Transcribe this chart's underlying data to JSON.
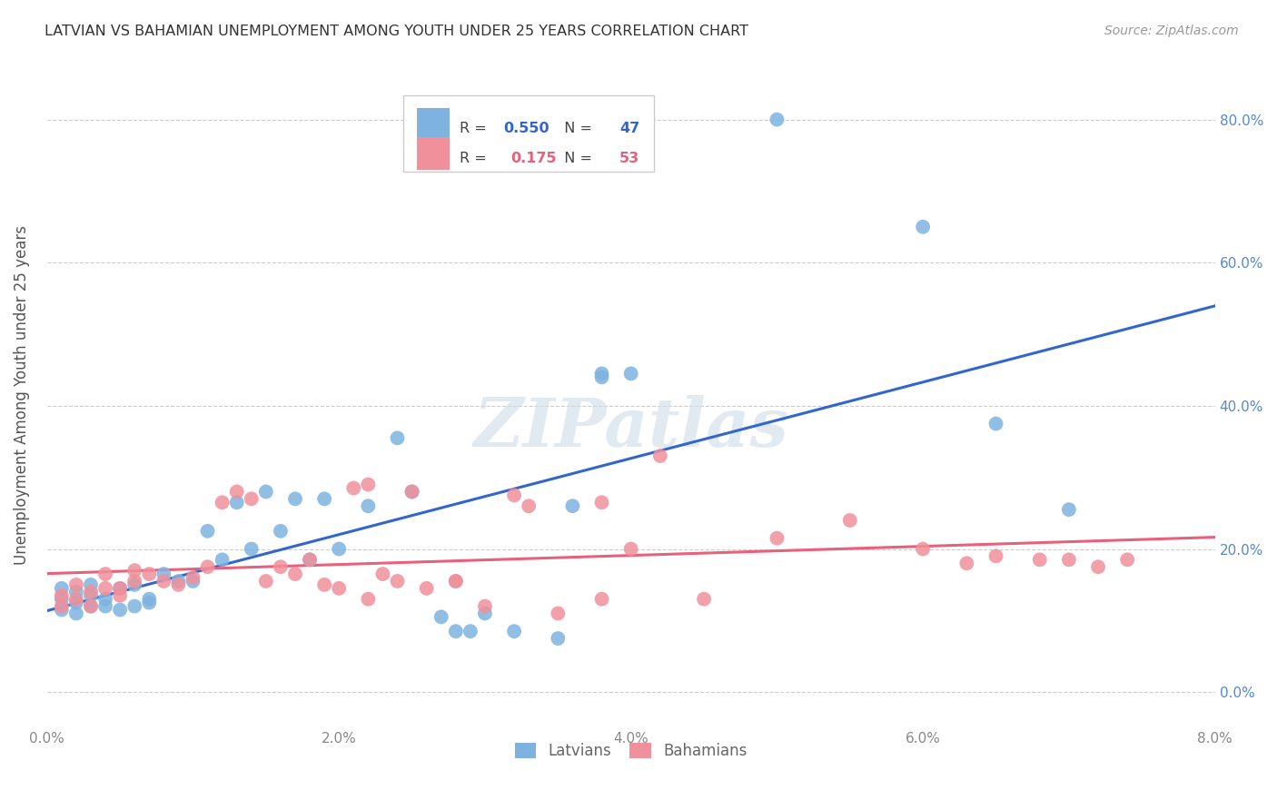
{
  "title": "LATVIAN VS BAHAMIAN UNEMPLOYMENT AMONG YOUTH UNDER 25 YEARS CORRELATION CHART",
  "source": "Source: ZipAtlas.com",
  "ylabel": "Unemployment Among Youth under 25 years",
  "xlim": [
    0.0,
    0.08
  ],
  "ylim": [
    -0.05,
    0.88
  ],
  "xticks": [
    0.0,
    0.02,
    0.04,
    0.06,
    0.08
  ],
  "xtick_labels": [
    "0.0%",
    "2.0%",
    "4.0%",
    "6.0%",
    "8.0%"
  ],
  "yticks": [
    0.0,
    0.2,
    0.4,
    0.6,
    0.8
  ],
  "ytick_labels": [
    "0.0%",
    "20.0%",
    "40.0%",
    "60.0%",
    "80.0%"
  ],
  "latvian_color": "#7EB3E0",
  "bahamian_color": "#F0909A",
  "line_latvian_color": "#3366CC",
  "line_bahamian_color": "#E8607A",
  "legend_R_latvian": "0.550",
  "legend_N_latvian": "47",
  "legend_R_bahamian": "0.175",
  "legend_N_bahamian": "53",
  "background_color": "#ffffff",
  "grid_color": "#cccccc",
  "title_color": "#333333",
  "axis_label_color": "#555555",
  "tick_color_x": "#888888",
  "tick_color_y": "#5588CC",
  "watermark": "ZIPatlas",
  "latvians_x": [
    0.001,
    0.001,
    0.001,
    0.002,
    0.002,
    0.002,
    0.003,
    0.003,
    0.003,
    0.004,
    0.004,
    0.005,
    0.005,
    0.006,
    0.006,
    0.007,
    0.007,
    0.008,
    0.009,
    0.01,
    0.011,
    0.012,
    0.013,
    0.014,
    0.015,
    0.016,
    0.017,
    0.018,
    0.019,
    0.02,
    0.022,
    0.024,
    0.025,
    0.027,
    0.028,
    0.029,
    0.03,
    0.032,
    0.035,
    0.038,
    0.04,
    0.036,
    0.05,
    0.06,
    0.065,
    0.07,
    0.038
  ],
  "latvians_y": [
    0.145,
    0.13,
    0.115,
    0.14,
    0.125,
    0.11,
    0.135,
    0.12,
    0.15,
    0.13,
    0.12,
    0.145,
    0.115,
    0.15,
    0.12,
    0.13,
    0.125,
    0.165,
    0.155,
    0.155,
    0.225,
    0.185,
    0.265,
    0.2,
    0.28,
    0.225,
    0.27,
    0.185,
    0.27,
    0.2,
    0.26,
    0.355,
    0.28,
    0.105,
    0.085,
    0.085,
    0.11,
    0.085,
    0.075,
    0.445,
    0.445,
    0.26,
    0.8,
    0.65,
    0.375,
    0.255,
    0.44
  ],
  "bahamians_x": [
    0.001,
    0.001,
    0.002,
    0.002,
    0.003,
    0.003,
    0.004,
    0.004,
    0.005,
    0.005,
    0.006,
    0.006,
    0.007,
    0.008,
    0.009,
    0.01,
    0.011,
    0.012,
    0.013,
    0.014,
    0.015,
    0.016,
    0.017,
    0.018,
    0.019,
    0.02,
    0.021,
    0.022,
    0.023,
    0.024,
    0.025,
    0.026,
    0.028,
    0.03,
    0.032,
    0.033,
    0.035,
    0.038,
    0.04,
    0.042,
    0.045,
    0.05,
    0.055,
    0.06,
    0.063,
    0.065,
    0.068,
    0.07,
    0.072,
    0.074,
    0.022,
    0.028,
    0.038
  ],
  "bahamians_y": [
    0.135,
    0.12,
    0.15,
    0.13,
    0.14,
    0.12,
    0.165,
    0.145,
    0.135,
    0.145,
    0.17,
    0.155,
    0.165,
    0.155,
    0.15,
    0.16,
    0.175,
    0.265,
    0.28,
    0.27,
    0.155,
    0.175,
    0.165,
    0.185,
    0.15,
    0.145,
    0.285,
    0.13,
    0.165,
    0.155,
    0.28,
    0.145,
    0.155,
    0.12,
    0.275,
    0.26,
    0.11,
    0.265,
    0.2,
    0.33,
    0.13,
    0.215,
    0.24,
    0.2,
    0.18,
    0.19,
    0.185,
    0.185,
    0.175,
    0.185,
    0.29,
    0.155,
    0.13
  ]
}
